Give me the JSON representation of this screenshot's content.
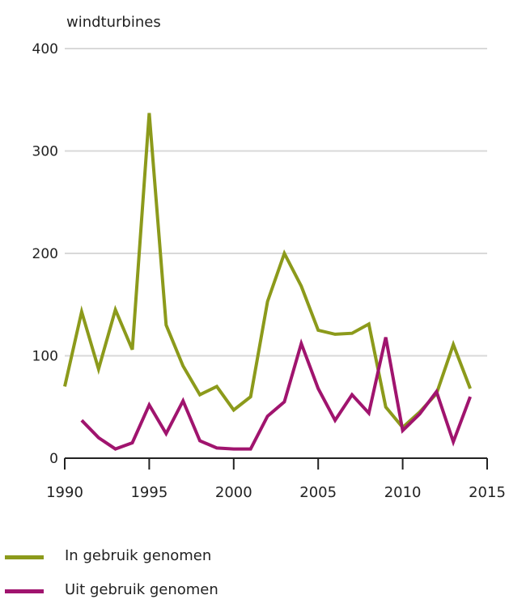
{
  "colors": {
    "series1": "#8c9a1b",
    "series2": "#a0146e",
    "grid": "#d9d9d9",
    "axis": "#222222"
  },
  "chart_data": {
    "type": "line",
    "ylabel": "windturbines",
    "xlim": [
      1990,
      2015
    ],
    "ylim": [
      0,
      400
    ],
    "xticks": [
      1990,
      1995,
      2000,
      2005,
      2010,
      2015
    ],
    "yticks": [
      0,
      100,
      200,
      300,
      400
    ],
    "grid": true,
    "legend": "bottom",
    "series": [
      {
        "name": "In gebruik genomen",
        "x": [
          1990,
          1991,
          1992,
          1993,
          1994,
          1995,
          1996,
          1997,
          1998,
          1999,
          2000,
          2001,
          2002,
          2003,
          2004,
          2005,
          2006,
          2007,
          2008,
          2009,
          2010,
          2011,
          2012,
          2013,
          2014
        ],
        "values": [
          70,
          143,
          87,
          145,
          106,
          337,
          130,
          90,
          62,
          70,
          47,
          60,
          153,
          200,
          168,
          125,
          121,
          122,
          131,
          50,
          30,
          45,
          63,
          111,
          68
        ]
      },
      {
        "name": "Uit gebruik genomen",
        "x": [
          1991,
          1992,
          1993,
          1994,
          1995,
          1996,
          1997,
          1998,
          1999,
          2000,
          2001,
          2002,
          2003,
          2004,
          2005,
          2006,
          2007,
          2008,
          2009,
          2010,
          2011,
          2012,
          2013,
          2014
        ],
        "values": [
          37,
          20,
          9,
          15,
          52,
          24,
          56,
          17,
          10,
          9,
          9,
          41,
          55,
          112,
          68,
          37,
          62,
          44,
          118,
          27,
          43,
          65,
          16,
          60
        ]
      }
    ]
  }
}
